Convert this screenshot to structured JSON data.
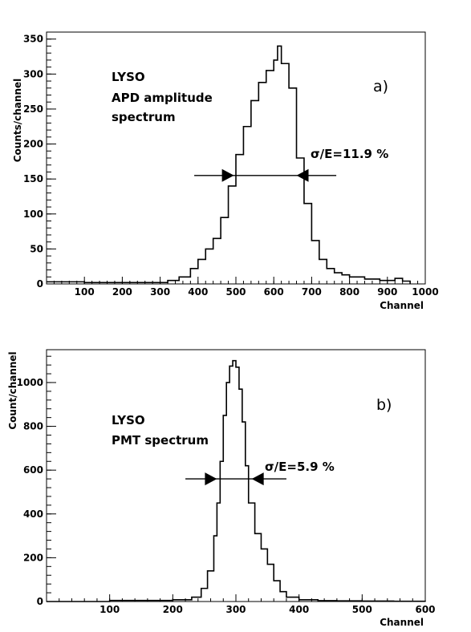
{
  "chart_data": [
    {
      "type": "line",
      "panel_label": "a)",
      "xlabel": "Channel",
      "ylabel": "Counts/channel",
      "xlim": [
        0,
        1000
      ],
      "ylim": [
        0,
        360
      ],
      "xticks": [
        100,
        200,
        300,
        400,
        500,
        600,
        700,
        800,
        900,
        1000
      ],
      "yticks": [
        0,
        50,
        100,
        150,
        200,
        250,
        300,
        350
      ],
      "annotations": [
        "LYSO",
        "APD amplitude",
        "spectrum"
      ],
      "resolution_label": "σ/E=11.9 %",
      "fwhm_line": {
        "y": 155,
        "x_from": 390,
        "x_to": 765,
        "arrow_left_x": 495,
        "arrow_right_x": 660
      },
      "series": [
        {
          "x": [
            0,
            100,
            200,
            280,
            320,
            350,
            380,
            400,
            420,
            440,
            460,
            480,
            500,
            520,
            540,
            560,
            580,
            600,
            610,
            620,
            640,
            660,
            680,
            700,
            720,
            740,
            760,
            780,
            800,
            840,
            880,
            900,
            920,
            940,
            960
          ],
          "y": [
            3,
            2,
            2,
            2,
            5,
            10,
            22,
            35,
            50,
            65,
            95,
            140,
            185,
            225,
            262,
            288,
            305,
            320,
            340,
            315,
            280,
            180,
            115,
            62,
            35,
            22,
            16,
            13,
            10,
            7,
            5,
            5,
            8,
            4,
            0
          ]
        }
      ]
    },
    {
      "type": "line",
      "panel_label": "b)",
      "xlabel": "Channel",
      "ylabel": "Count/channel",
      "xlim": [
        0,
        600
      ],
      "ylim": [
        0,
        1150
      ],
      "xticks": [
        100,
        200,
        300,
        400,
        500,
        600
      ],
      "yticks": [
        0,
        200,
        400,
        600,
        800,
        1000
      ],
      "annotations": [
        "LYSO",
        "PMT spectrum"
      ],
      "resolution_label": "σ/E=5.9 %",
      "fwhm_line": {
        "y": 560,
        "x_from": 220,
        "x_to": 380,
        "arrow_left_x": 270,
        "arrow_right_x": 325
      },
      "series": [
        {
          "x": [
            0,
            100,
            200,
            230,
            245,
            255,
            265,
            270,
            275,
            280,
            285,
            290,
            295,
            300,
            305,
            310,
            315,
            320,
            330,
            340,
            350,
            360,
            370,
            380,
            400,
            430,
            460,
            500,
            550,
            600
          ],
          "y": [
            0,
            5,
            8,
            20,
            60,
            140,
            300,
            450,
            640,
            850,
            1000,
            1075,
            1100,
            1070,
            970,
            820,
            620,
            450,
            310,
            240,
            170,
            95,
            45,
            20,
            8,
            4,
            3,
            2,
            1,
            0
          ]
        }
      ]
    }
  ]
}
